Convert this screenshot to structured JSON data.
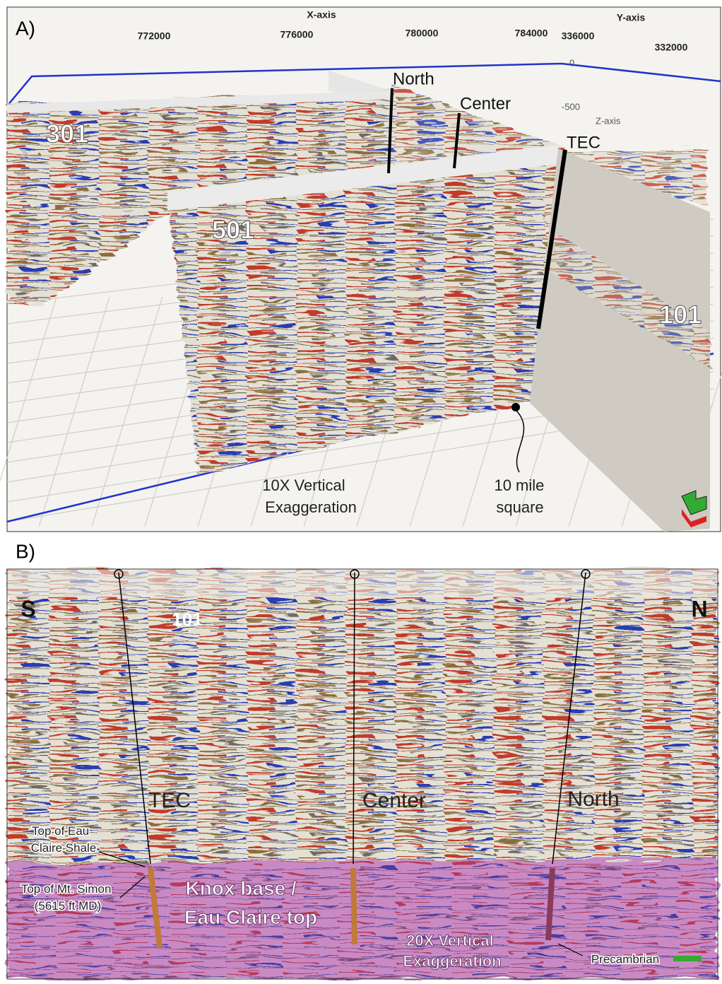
{
  "panel_a": {
    "label": "A)",
    "x_axis": {
      "title": "X-axis",
      "ticks": [
        "772000",
        "776000",
        "780000",
        "784000"
      ]
    },
    "y_axis": {
      "title": "Y-axis",
      "ticks": [
        "336000",
        "332000"
      ]
    },
    "z_axis": {
      "title": "Z-axis",
      "ticks": [
        "0",
        "-500"
      ]
    },
    "wells": [
      "North",
      "Center",
      "TEC"
    ],
    "lines": [
      "301",
      "501",
      "101"
    ],
    "notes": [
      [
        "10X Vertical",
        "Exaggeration"
      ],
      [
        "10 mile",
        "square"
      ]
    ]
  },
  "panel_b": {
    "label": "B)",
    "directions": [
      "S",
      "N"
    ],
    "line": "101",
    "wells": [
      "TEC",
      "Center",
      "North"
    ],
    "shale_top": [
      "Top of Eau",
      "Claire Shale"
    ],
    "simon_top": [
      "Top of Mt. Simon",
      "(5615 ft MD)"
    ],
    "horizon": [
      "Knox base /",
      "Eau Claire top"
    ],
    "exaggeration": [
      "20X Vertical",
      "Exaggeration"
    ],
    "basement": "Precambrian"
  }
}
